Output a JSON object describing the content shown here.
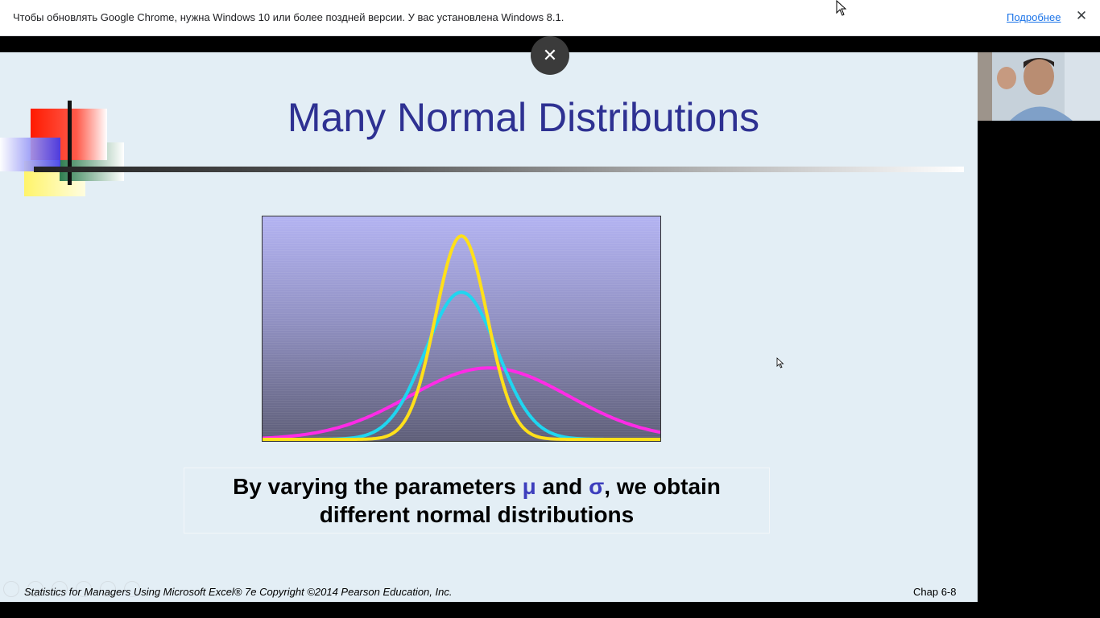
{
  "browser": {
    "infobar": {
      "message": "Чтобы обновлять Google Chrome, нужна Windows 10 или более поздней версии. У вас установлена Windows 8.1.",
      "more_link": "Подробнее",
      "close_icon": "close-icon"
    }
  },
  "overlay": {
    "close_symbol": "✕"
  },
  "slide": {
    "title": "Many Normal Distributions",
    "caption": {
      "part1": "By varying the parameters ",
      "mu": "μ",
      "part2": " and ",
      "sigma": "σ",
      "part3": ", we obtain",
      "line2": "different normal distributions"
    },
    "footer_left": "Statistics for Managers Using Microsoft Excel® 7e Copyright ©2014 Pearson Education, Inc.",
    "footer_right": "Chap 6-8"
  },
  "chart_data": {
    "type": "line",
    "title": "",
    "xlabel": "",
    "ylabel": "",
    "xlim": [
      0,
      10
    ],
    "ylim": [
      0,
      1
    ],
    "grid": false,
    "series": [
      {
        "color": "#ff2be6",
        "mean": 5.7,
        "sd": 2.0,
        "peak": 0.33
      },
      {
        "color": "#1fd6f0",
        "mean": 5.0,
        "sd": 0.9,
        "peak": 0.68
      },
      {
        "color": "#ffe01a",
        "mean": 5.0,
        "sd": 0.65,
        "peak": 0.94
      }
    ]
  },
  "colors": {
    "title": "#2e3192",
    "greek": "#3d3ebd",
    "slide_bg": "#e3eef5"
  }
}
